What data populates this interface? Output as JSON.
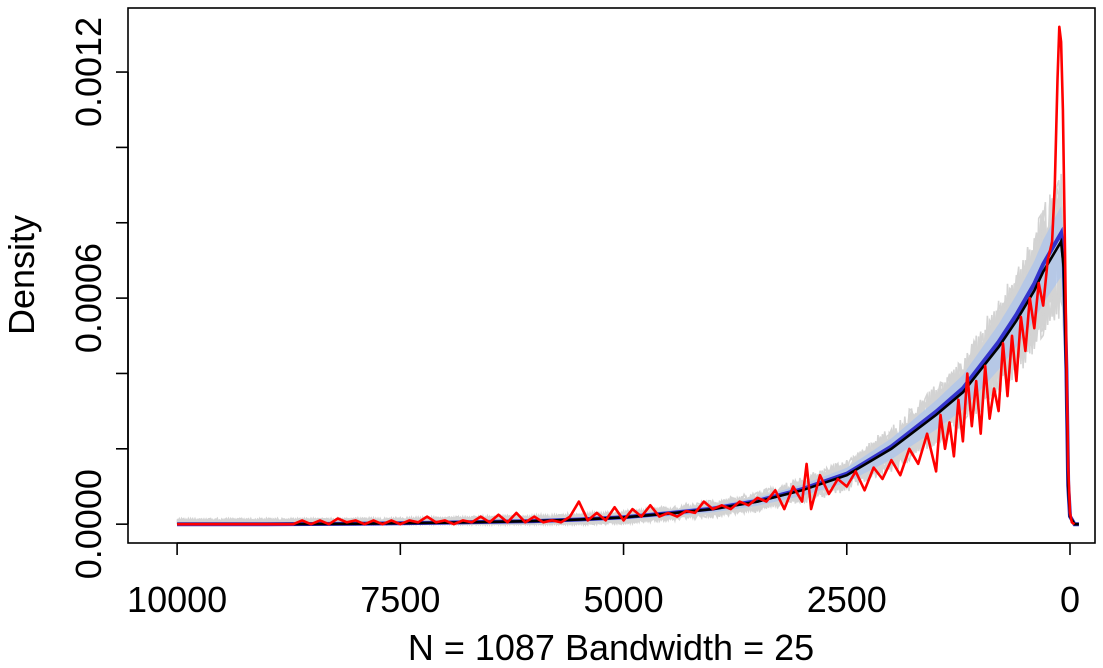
{
  "chart_data": {
    "type": "line",
    "title": "",
    "xlabel": "N = 1087 Bandwidth = 25",
    "ylabel": "Density",
    "x_reversed": true,
    "xlim": [
      10550,
      -280
    ],
    "ylim": [
      -5e-05,
      0.00137
    ],
    "x_ticks": [
      10000,
      7500,
      5000,
      2500,
      0
    ],
    "x_tick_labels": [
      "10000",
      "7500",
      "5000",
      "2500",
      "0"
    ],
    "y_ticks": [
      0.0,
      0.0002,
      0.0004,
      0.0006,
      0.0008,
      0.001,
      0.0012
    ],
    "y_tick_labels": [
      "0.0000",
      "",
      "",
      "0.0006",
      "",
      "",
      "0.0012"
    ],
    "grid": false,
    "legend": "none",
    "colors": {
      "simulations": "#d3d3d3",
      "envelope": "#a4c2f4",
      "mean": "#3333cc",
      "median": "#000000",
      "observed": "#ff0000"
    },
    "series": [
      {
        "role": "mean-density",
        "color": "#000000",
        "x": [
          10000,
          9000,
          8000,
          7000,
          6000,
          5500,
          5000,
          4500,
          4000,
          3500,
          3000,
          2500,
          2000,
          1500,
          1200,
          1000,
          800,
          600,
          400,
          300,
          200,
          100,
          70,
          40,
          20,
          0,
          -50,
          -100
        ],
        "y": [
          0.0,
          0.0,
          1e-06,
          4e-06,
          8e-06,
          1.2e-05,
          1.8e-05,
          2.8e-05,
          4e-05,
          6e-05,
          9e-05,
          0.00013,
          0.0002,
          0.00029,
          0.00035,
          0.00041,
          0.00047,
          0.00054,
          0.00062,
          0.00067,
          0.00071,
          0.00075,
          0.00068,
          0.0004,
          0.0001,
          2e-05,
          0.0,
          0.0
        ]
      },
      {
        "role": "observed-density",
        "color": "#ff0000",
        "x": [
          10000,
          8700,
          8600,
          8500,
          8400,
          8300,
          8200,
          8100,
          8000,
          7900,
          7800,
          7700,
          7600,
          7500,
          7400,
          7300,
          7200,
          7100,
          7000,
          6900,
          6800,
          6700,
          6600,
          6500,
          6400,
          6300,
          6200,
          6100,
          6000,
          5900,
          5800,
          5700,
          5600,
          5500,
          5400,
          5300,
          5200,
          5100,
          5000,
          4900,
          4800,
          4700,
          4600,
          4500,
          4400,
          4300,
          4200,
          4100,
          4000,
          3900,
          3800,
          3700,
          3600,
          3500,
          3400,
          3300,
          3200,
          3100,
          3000,
          2950,
          2900,
          2800,
          2700,
          2600,
          2500,
          2400,
          2300,
          2200,
          2100,
          2000,
          1900,
          1800,
          1700,
          1600,
          1500,
          1450,
          1400,
          1350,
          1300,
          1250,
          1200,
          1150,
          1100,
          1050,
          1000,
          950,
          900,
          850,
          800,
          750,
          700,
          650,
          600,
          550,
          500,
          450,
          400,
          350,
          300,
          250,
          200,
          170,
          140,
          120,
          100,
          80,
          60,
          40,
          20,
          0,
          -20,
          -50
        ],
        "y": [
          0.0,
          0.0,
          1e-05,
          0.0,
          1e-05,
          0.0,
          1.5e-05,
          5e-06,
          1e-05,
          0.0,
          1e-05,
          0.0,
          1e-05,
          0.0,
          1e-05,
          5e-06,
          2e-05,
          5e-06,
          1e-05,
          0.0,
          1e-05,
          5e-06,
          2e-05,
          5e-06,
          2.5e-05,
          5e-06,
          3e-05,
          5e-06,
          2e-05,
          5e-06,
          1e-05,
          5e-06,
          2e-05,
          6e-05,
          1e-05,
          3e-05,
          1e-05,
          4.5e-05,
          1e-05,
          4e-05,
          2e-05,
          5e-05,
          2e-05,
          3e-05,
          2e-05,
          3.5e-05,
          3e-05,
          6e-05,
          4e-05,
          5e-05,
          4e-05,
          6e-05,
          5e-05,
          7e-05,
          6e-05,
          9e-05,
          4e-05,
          0.0001,
          6e-05,
          0.00016,
          4e-05,
          0.00013,
          8e-05,
          0.00012,
          0.0001,
          0.00014,
          9e-05,
          0.00015,
          0.00012,
          0.00017,
          0.00013,
          0.0002,
          0.00016,
          0.00024,
          0.00014,
          0.00029,
          0.0002,
          0.00027,
          0.00018,
          0.00033,
          0.00022,
          0.0004,
          0.00026,
          0.00038,
          0.00024,
          0.00042,
          0.00028,
          0.00036,
          0.0003,
          0.00048,
          0.00034,
          0.0005,
          0.00038,
          0.00055,
          0.00046,
          0.0006,
          0.00052,
          0.00064,
          0.00058,
          0.0007,
          0.00075,
          0.0009,
          0.00118,
          0.00132,
          0.00128,
          0.0011,
          0.0008,
          0.00045,
          0.00015,
          3e-05,
          5e-06,
          0.0
        ]
      }
    ]
  }
}
